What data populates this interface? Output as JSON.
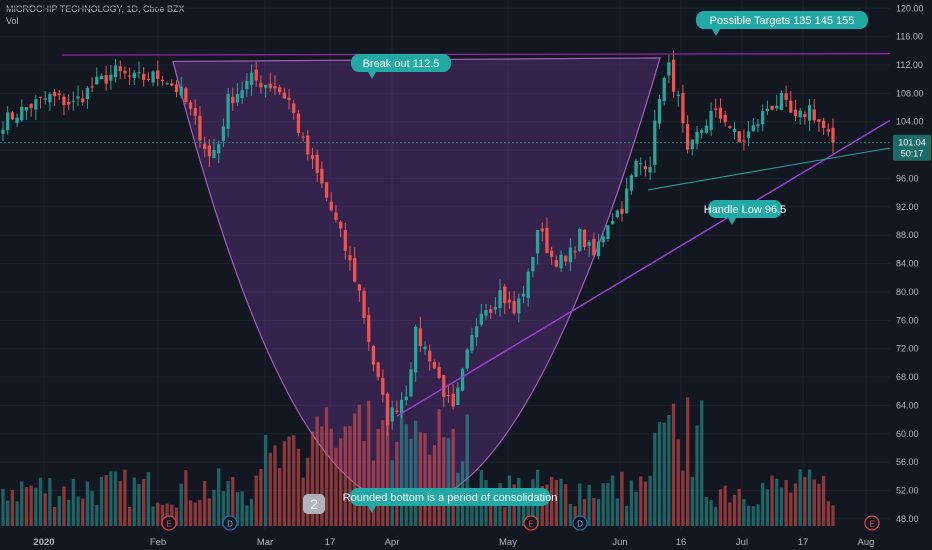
{
  "header": {
    "symbol_line": "MICROCHIP TECHNOLOGY, 1D, Cboe BZX",
    "vol_label": "Vol"
  },
  "price_tag": {
    "price": "101.04",
    "countdown": "50:17"
  },
  "annotations": {
    "breakout": "Break out 112.5",
    "targets": "Possible Targets   135  145  155",
    "handle_low": "Handle Low  96.5",
    "rounded_bottom": "Rounded bottom is a period of consolidation",
    "wave_label": "2"
  },
  "event_badges": {
    "earnings": "E",
    "dividend": "D"
  },
  "colors": {
    "background": "#131722",
    "up": "#26a69a",
    "down": "#ef5350",
    "bowl_fill": "#7b3fa8",
    "line_purple": "#9c27b0",
    "line_teal": "#26a69a",
    "callout": "#22a9a5",
    "callout_dark": "#1b6b66"
  },
  "chart_data": {
    "type": "candlestick",
    "title": "MICROCHIP TECHNOLOGY, 1D, Cboe BZX",
    "y_axis": {
      "ticks": [
        "120.00",
        "116.00",
        "112.00",
        "108.00",
        "104.00",
        "100.00",
        "96.00",
        "92.00",
        "88.00",
        "84.00",
        "80.00",
        "76.00",
        "72.00",
        "68.00",
        "64.00",
        "60.00",
        "56.00",
        "52.00",
        "48.00"
      ],
      "range": [
        47,
        120.6
      ]
    },
    "x_axis": {
      "ticks": [
        "2020",
        "Feb",
        "Mar",
        "17",
        "Apr",
        "May",
        "Jun",
        "16",
        "Jul",
        "17",
        "Aug"
      ]
    },
    "last_price": 101.04,
    "levels": {
      "breakout": 112.5,
      "handle_low": 96.5,
      "targets": [
        135,
        145,
        155
      ]
    },
    "waypoints": [
      [
        0,
        104
      ],
      [
        5,
        106
      ],
      [
        10,
        107.5
      ],
      [
        15,
        106.5
      ],
      [
        19,
        109
      ],
      [
        24,
        111
      ],
      [
        28,
        110
      ],
      [
        34,
        110.5
      ],
      [
        38,
        108
      ],
      [
        41,
        104
      ],
      [
        44,
        99
      ],
      [
        46,
        101
      ],
      [
        48,
        107
      ],
      [
        53,
        110
      ],
      [
        58,
        109
      ],
      [
        61,
        107
      ],
      [
        64,
        101
      ],
      [
        68,
        95
      ],
      [
        72,
        88
      ],
      [
        76,
        80
      ],
      [
        79,
        70
      ],
      [
        82,
        62
      ],
      [
        84,
        64
      ],
      [
        86,
        66
      ],
      [
        88,
        74
      ],
      [
        91,
        71
      ],
      [
        94,
        66
      ],
      [
        96,
        63
      ],
      [
        99,
        71
      ],
      [
        102,
        78
      ],
      [
        104,
        78
      ],
      [
        106,
        80
      ],
      [
        109,
        77
      ],
      [
        112,
        82
      ],
      [
        114,
        89
      ],
      [
        117,
        85
      ],
      [
        120,
        84
      ],
      [
        123,
        88
      ],
      [
        126,
        85
      ],
      [
        129,
        90
      ],
      [
        132,
        92
      ],
      [
        135,
        98
      ],
      [
        138,
        98.5
      ],
      [
        140,
        108
      ],
      [
        142,
        111.5
      ],
      [
        144,
        107
      ],
      [
        146,
        99
      ],
      [
        148,
        102
      ],
      [
        151,
        105
      ],
      [
        154,
        104.5
      ],
      [
        157,
        101
      ],
      [
        160,
        103
      ],
      [
        163,
        106
      ],
      [
        166,
        107
      ],
      [
        169,
        104
      ],
      [
        172,
        106
      ],
      [
        175,
        103
      ],
      [
        177,
        101
      ]
    ],
    "n_days": 178
  }
}
